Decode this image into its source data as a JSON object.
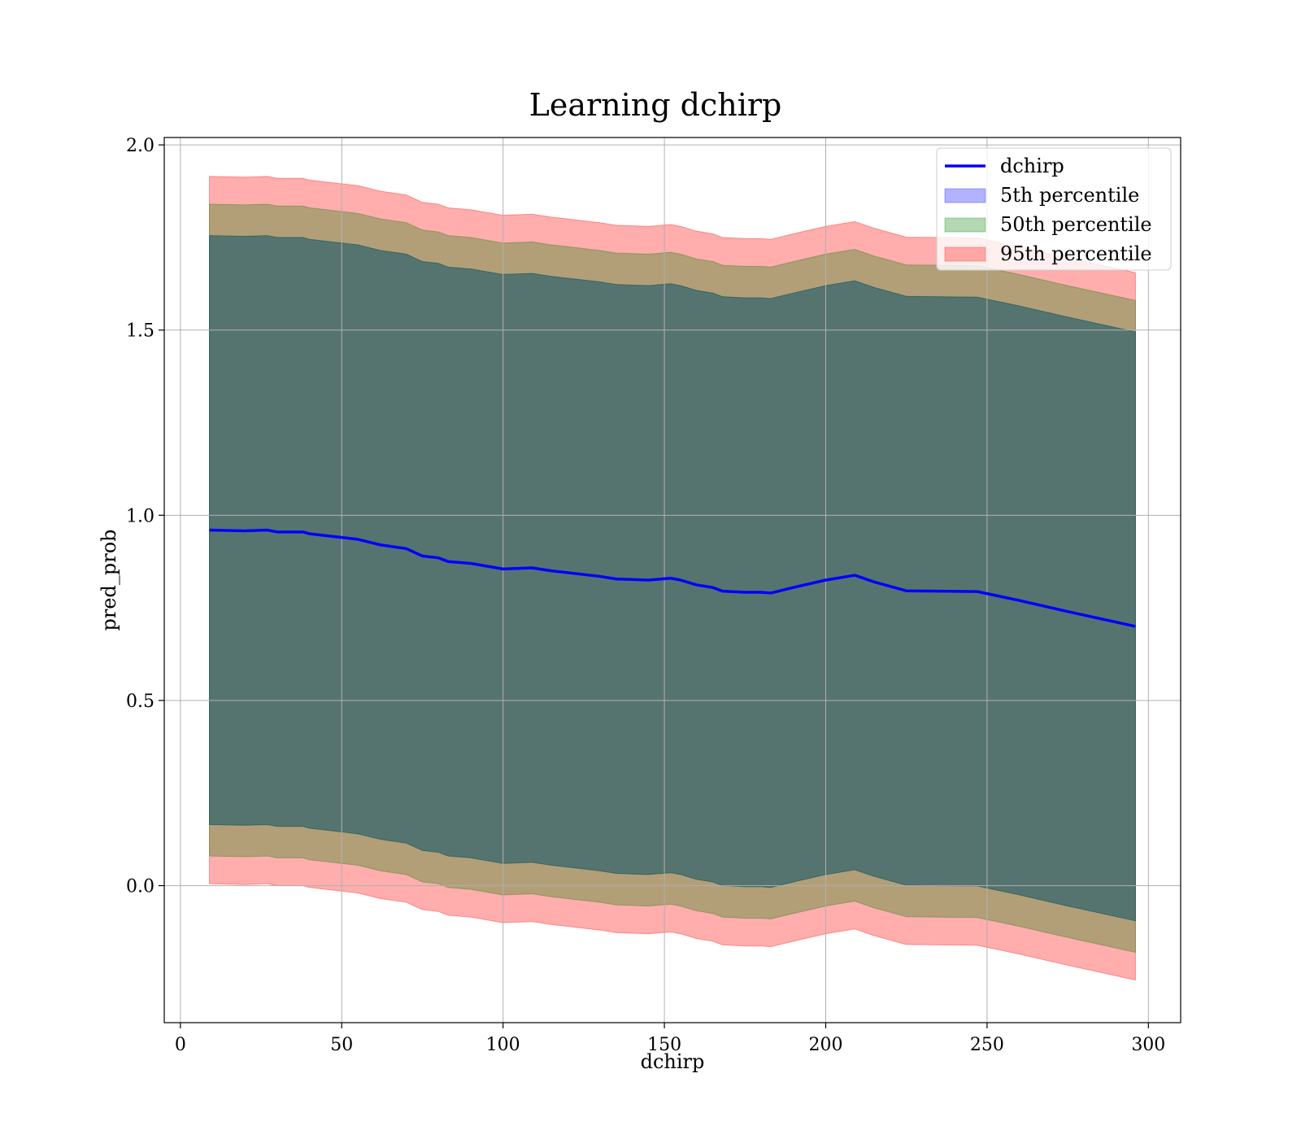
{
  "chart_data": {
    "type": "line",
    "title": "Learning dchirp",
    "xlabel": "dchirp",
    "ylabel": "pred_prob",
    "xlim": [
      -5,
      310
    ],
    "ylim": [
      -0.37,
      2.02
    ],
    "x_ticks": [
      0,
      50,
      100,
      150,
      200,
      250,
      300
    ],
    "x_tick_labels": [
      "0",
      "50",
      "100",
      "150",
      "200",
      "250",
      "300"
    ],
    "y_ticks": [
      0.0,
      0.5,
      1.0,
      1.5,
      2.0
    ],
    "y_tick_labels": [
      "0.0",
      "0.5",
      "1.0",
      "1.5",
      "2.0"
    ],
    "grid": true,
    "legend_position": "top-right",
    "legend": [
      "dchirp",
      "5th percentile",
      "50th percentile",
      "95th percentile"
    ],
    "x": [
      9,
      20,
      27,
      30,
      38,
      40,
      50,
      55,
      62,
      70,
      75,
      80,
      83,
      90,
      100,
      109,
      115,
      120,
      130,
      135,
      145,
      152,
      155,
      160,
      165,
      168,
      175,
      180,
      183,
      190,
      200,
      209,
      215,
      225,
      235,
      247,
      260,
      275,
      296
    ],
    "series": [
      {
        "name": "dchirp",
        "kind": "line",
        "color": "#0000ff",
        "values": [
          0.96,
          0.958,
          0.96,
          0.955,
          0.955,
          0.95,
          0.94,
          0.935,
          0.92,
          0.91,
          0.89,
          0.885,
          0.875,
          0.87,
          0.855,
          0.858,
          0.85,
          0.845,
          0.835,
          0.828,
          0.825,
          0.83,
          0.825,
          0.812,
          0.805,
          0.795,
          0.792,
          0.792,
          0.79,
          0.805,
          0.825,
          0.838,
          0.82,
          0.796,
          0.795,
          0.794,
          0.77,
          0.74,
          0.7
        ]
      },
      {
        "name": "5th percentile",
        "kind": "band",
        "color": "#0000ff",
        "lower": [
          0.165,
          0.163,
          0.165,
          0.16,
          0.16,
          0.155,
          0.145,
          0.14,
          0.125,
          0.115,
          0.095,
          0.09,
          0.08,
          0.075,
          0.06,
          0.063,
          0.055,
          0.05,
          0.04,
          0.033,
          0.03,
          0.035,
          0.03,
          0.017,
          0.01,
          0.0,
          -0.003,
          -0.003,
          -0.005,
          0.01,
          0.03,
          0.043,
          0.025,
          0.001,
          0.0,
          -0.001,
          -0.025,
          -0.055,
          -0.095
        ],
        "upper": [
          1.755,
          1.753,
          1.755,
          1.75,
          1.75,
          1.745,
          1.735,
          1.73,
          1.715,
          1.705,
          1.685,
          1.68,
          1.67,
          1.665,
          1.65,
          1.653,
          1.645,
          1.64,
          1.63,
          1.623,
          1.62,
          1.625,
          1.62,
          1.607,
          1.6,
          1.59,
          1.587,
          1.587,
          1.585,
          1.6,
          1.62,
          1.633,
          1.615,
          1.591,
          1.59,
          1.589,
          1.565,
          1.535,
          1.495
        ]
      },
      {
        "name": "50th percentile",
        "kind": "band",
        "color": "#008000",
        "lower": [
          0.165,
          0.163,
          0.165,
          0.16,
          0.16,
          0.155,
          0.145,
          0.14,
          0.125,
          0.115,
          0.095,
          0.09,
          0.08,
          0.075,
          0.06,
          0.063,
          0.055,
          0.05,
          0.04,
          0.033,
          0.03,
          0.035,
          0.03,
          0.017,
          0.01,
          0.0,
          -0.003,
          -0.003,
          -0.005,
          0.01,
          0.03,
          0.043,
          0.025,
          0.001,
          0.0,
          -0.001,
          -0.025,
          -0.055,
          -0.095
        ],
        "upper": [
          1.755,
          1.753,
          1.755,
          1.75,
          1.75,
          1.745,
          1.735,
          1.73,
          1.715,
          1.705,
          1.685,
          1.68,
          1.67,
          1.665,
          1.65,
          1.653,
          1.645,
          1.64,
          1.63,
          1.623,
          1.62,
          1.625,
          1.62,
          1.607,
          1.6,
          1.59,
          1.587,
          1.587,
          1.585,
          1.6,
          1.62,
          1.633,
          1.615,
          1.591,
          1.59,
          1.589,
          1.565,
          1.535,
          1.495
        ]
      },
      {
        "name": "95th percentile",
        "kind": "band",
        "color": "#ff0000",
        "lower": [
          0.005,
          0.003,
          0.005,
          0.0,
          0.0,
          -0.005,
          -0.015,
          -0.02,
          -0.035,
          -0.045,
          -0.065,
          -0.07,
          -0.08,
          -0.085,
          -0.1,
          -0.097,
          -0.105,
          -0.11,
          -0.12,
          -0.127,
          -0.13,
          -0.125,
          -0.13,
          -0.143,
          -0.15,
          -0.16,
          -0.163,
          -0.163,
          -0.165,
          -0.15,
          -0.13,
          -0.117,
          -0.135,
          -0.159,
          -0.16,
          -0.161,
          -0.185,
          -0.215,
          -0.255
        ],
        "upper": [
          1.915,
          1.913,
          1.915,
          1.91,
          1.91,
          1.905,
          1.895,
          1.89,
          1.875,
          1.865,
          1.845,
          1.84,
          1.83,
          1.825,
          1.81,
          1.813,
          1.805,
          1.8,
          1.79,
          1.783,
          1.78,
          1.785,
          1.78,
          1.767,
          1.76,
          1.75,
          1.747,
          1.747,
          1.745,
          1.76,
          1.78,
          1.793,
          1.775,
          1.751,
          1.75,
          1.749,
          1.725,
          1.695,
          1.655
        ]
      },
      {
        "name": "",
        "kind": "band",
        "color": "#008000",
        "note_free": true,
        "lower": [
          0.08,
          0.078,
          0.08,
          0.075,
          0.075,
          0.07,
          0.06,
          0.055,
          0.04,
          0.03,
          0.01,
          0.005,
          -0.005,
          -0.01,
          -0.025,
          -0.022,
          -0.03,
          -0.035,
          -0.045,
          -0.052,
          -0.055,
          -0.05,
          -0.055,
          -0.068,
          -0.075,
          -0.085,
          -0.088,
          -0.088,
          -0.09,
          -0.075,
          -0.055,
          -0.042,
          -0.06,
          -0.084,
          -0.085,
          -0.086,
          -0.11,
          -0.14,
          -0.18
        ],
        "upper": [
          1.84,
          1.838,
          1.84,
          1.835,
          1.835,
          1.83,
          1.82,
          1.815,
          1.8,
          1.79,
          1.77,
          1.765,
          1.755,
          1.75,
          1.735,
          1.738,
          1.73,
          1.725,
          1.715,
          1.708,
          1.705,
          1.71,
          1.705,
          1.692,
          1.685,
          1.675,
          1.672,
          1.672,
          1.67,
          1.685,
          1.705,
          1.718,
          1.7,
          1.676,
          1.675,
          1.674,
          1.65,
          1.62,
          1.58
        ]
      }
    ]
  }
}
